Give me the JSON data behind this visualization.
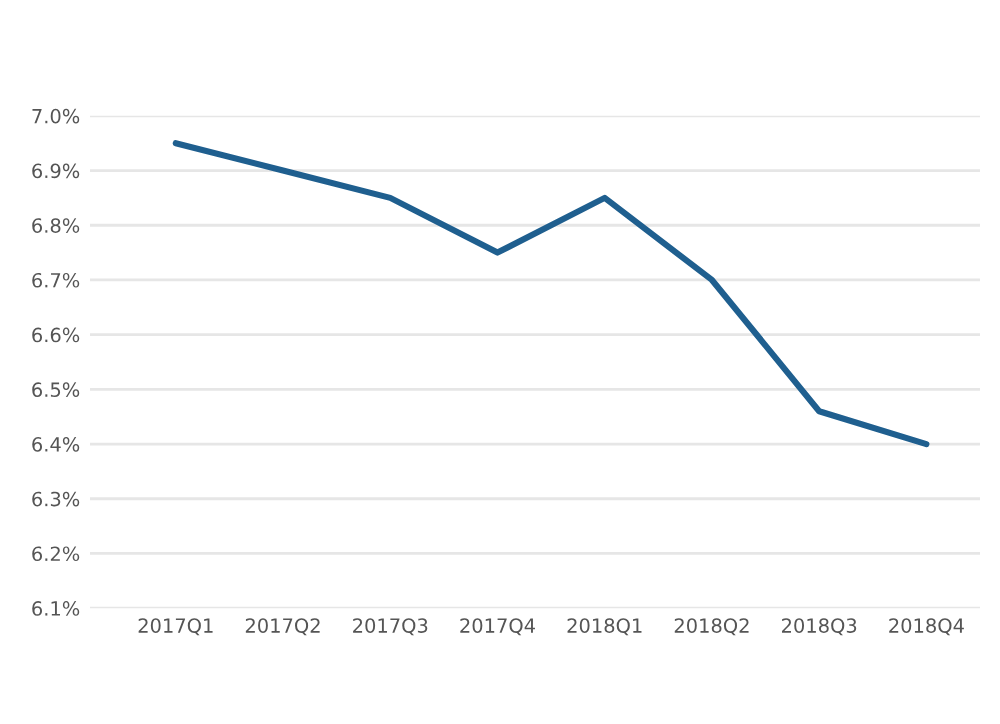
{
  "chart_data": {
    "type": "line",
    "categories": [
      "2017Q1",
      "2017Q2",
      "2017Q3",
      "2017Q4",
      "2018Q1",
      "2018Q2",
      "2018Q3",
      "2018Q4"
    ],
    "series": [
      {
        "color": "#1f5f8f",
        "values": [
          6.95,
          6.9,
          6.85,
          6.75,
          6.85,
          6.7,
          6.46,
          6.4
        ]
      }
    ],
    "ylim": [
      6.1,
      7.0
    ],
    "yticks": [
      {
        "value": 6.1,
        "label": "6.1%"
      },
      {
        "value": 6.2,
        "label": "6.2%"
      },
      {
        "value": 6.3,
        "label": "6.3%"
      },
      {
        "value": 6.4,
        "label": "6.4%"
      },
      {
        "value": 6.5,
        "label": "6.5%"
      },
      {
        "value": 6.6,
        "label": "6.6%"
      },
      {
        "value": 6.7,
        "label": "6.7%"
      },
      {
        "value": 6.8,
        "label": "6.8%"
      },
      {
        "value": 6.9,
        "label": "6.9%"
      },
      {
        "value": 7.0,
        "label": "7.0%"
      }
    ],
    "grid": "y",
    "marker": "none",
    "line_style": "solid"
  }
}
